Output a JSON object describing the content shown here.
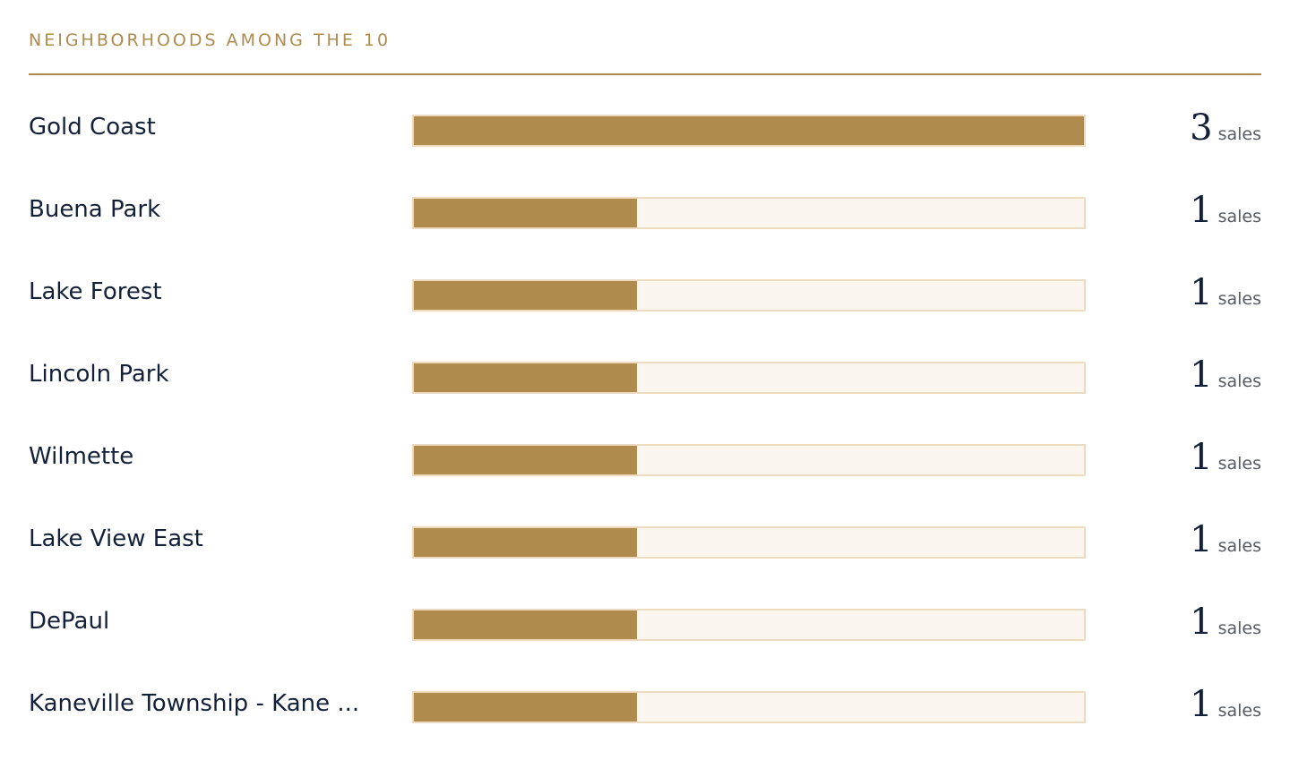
{
  "header": {
    "title": "NEIGHBORHOODS AMONG THE 10"
  },
  "colors": {
    "accent": "#B08B4E",
    "track": "#FAF6EF",
    "track_border": "#EEDBBF",
    "text": "#13203a"
  },
  "chart_data": {
    "type": "bar",
    "orientation": "horizontal",
    "title": "NEIGHBORHOODS AMONG THE 10",
    "xlim": [
      0,
      3
    ],
    "unit_label": "sales",
    "categories": [
      "Gold Coast",
      "Buena Park",
      "Lake Forest",
      "Lincoln Park",
      "Wilmette",
      "Lake View East",
      "DePaul",
      "Kaneville Township - Kane ..."
    ],
    "values": [
      3,
      1,
      1,
      1,
      1,
      1,
      1,
      1
    ]
  }
}
